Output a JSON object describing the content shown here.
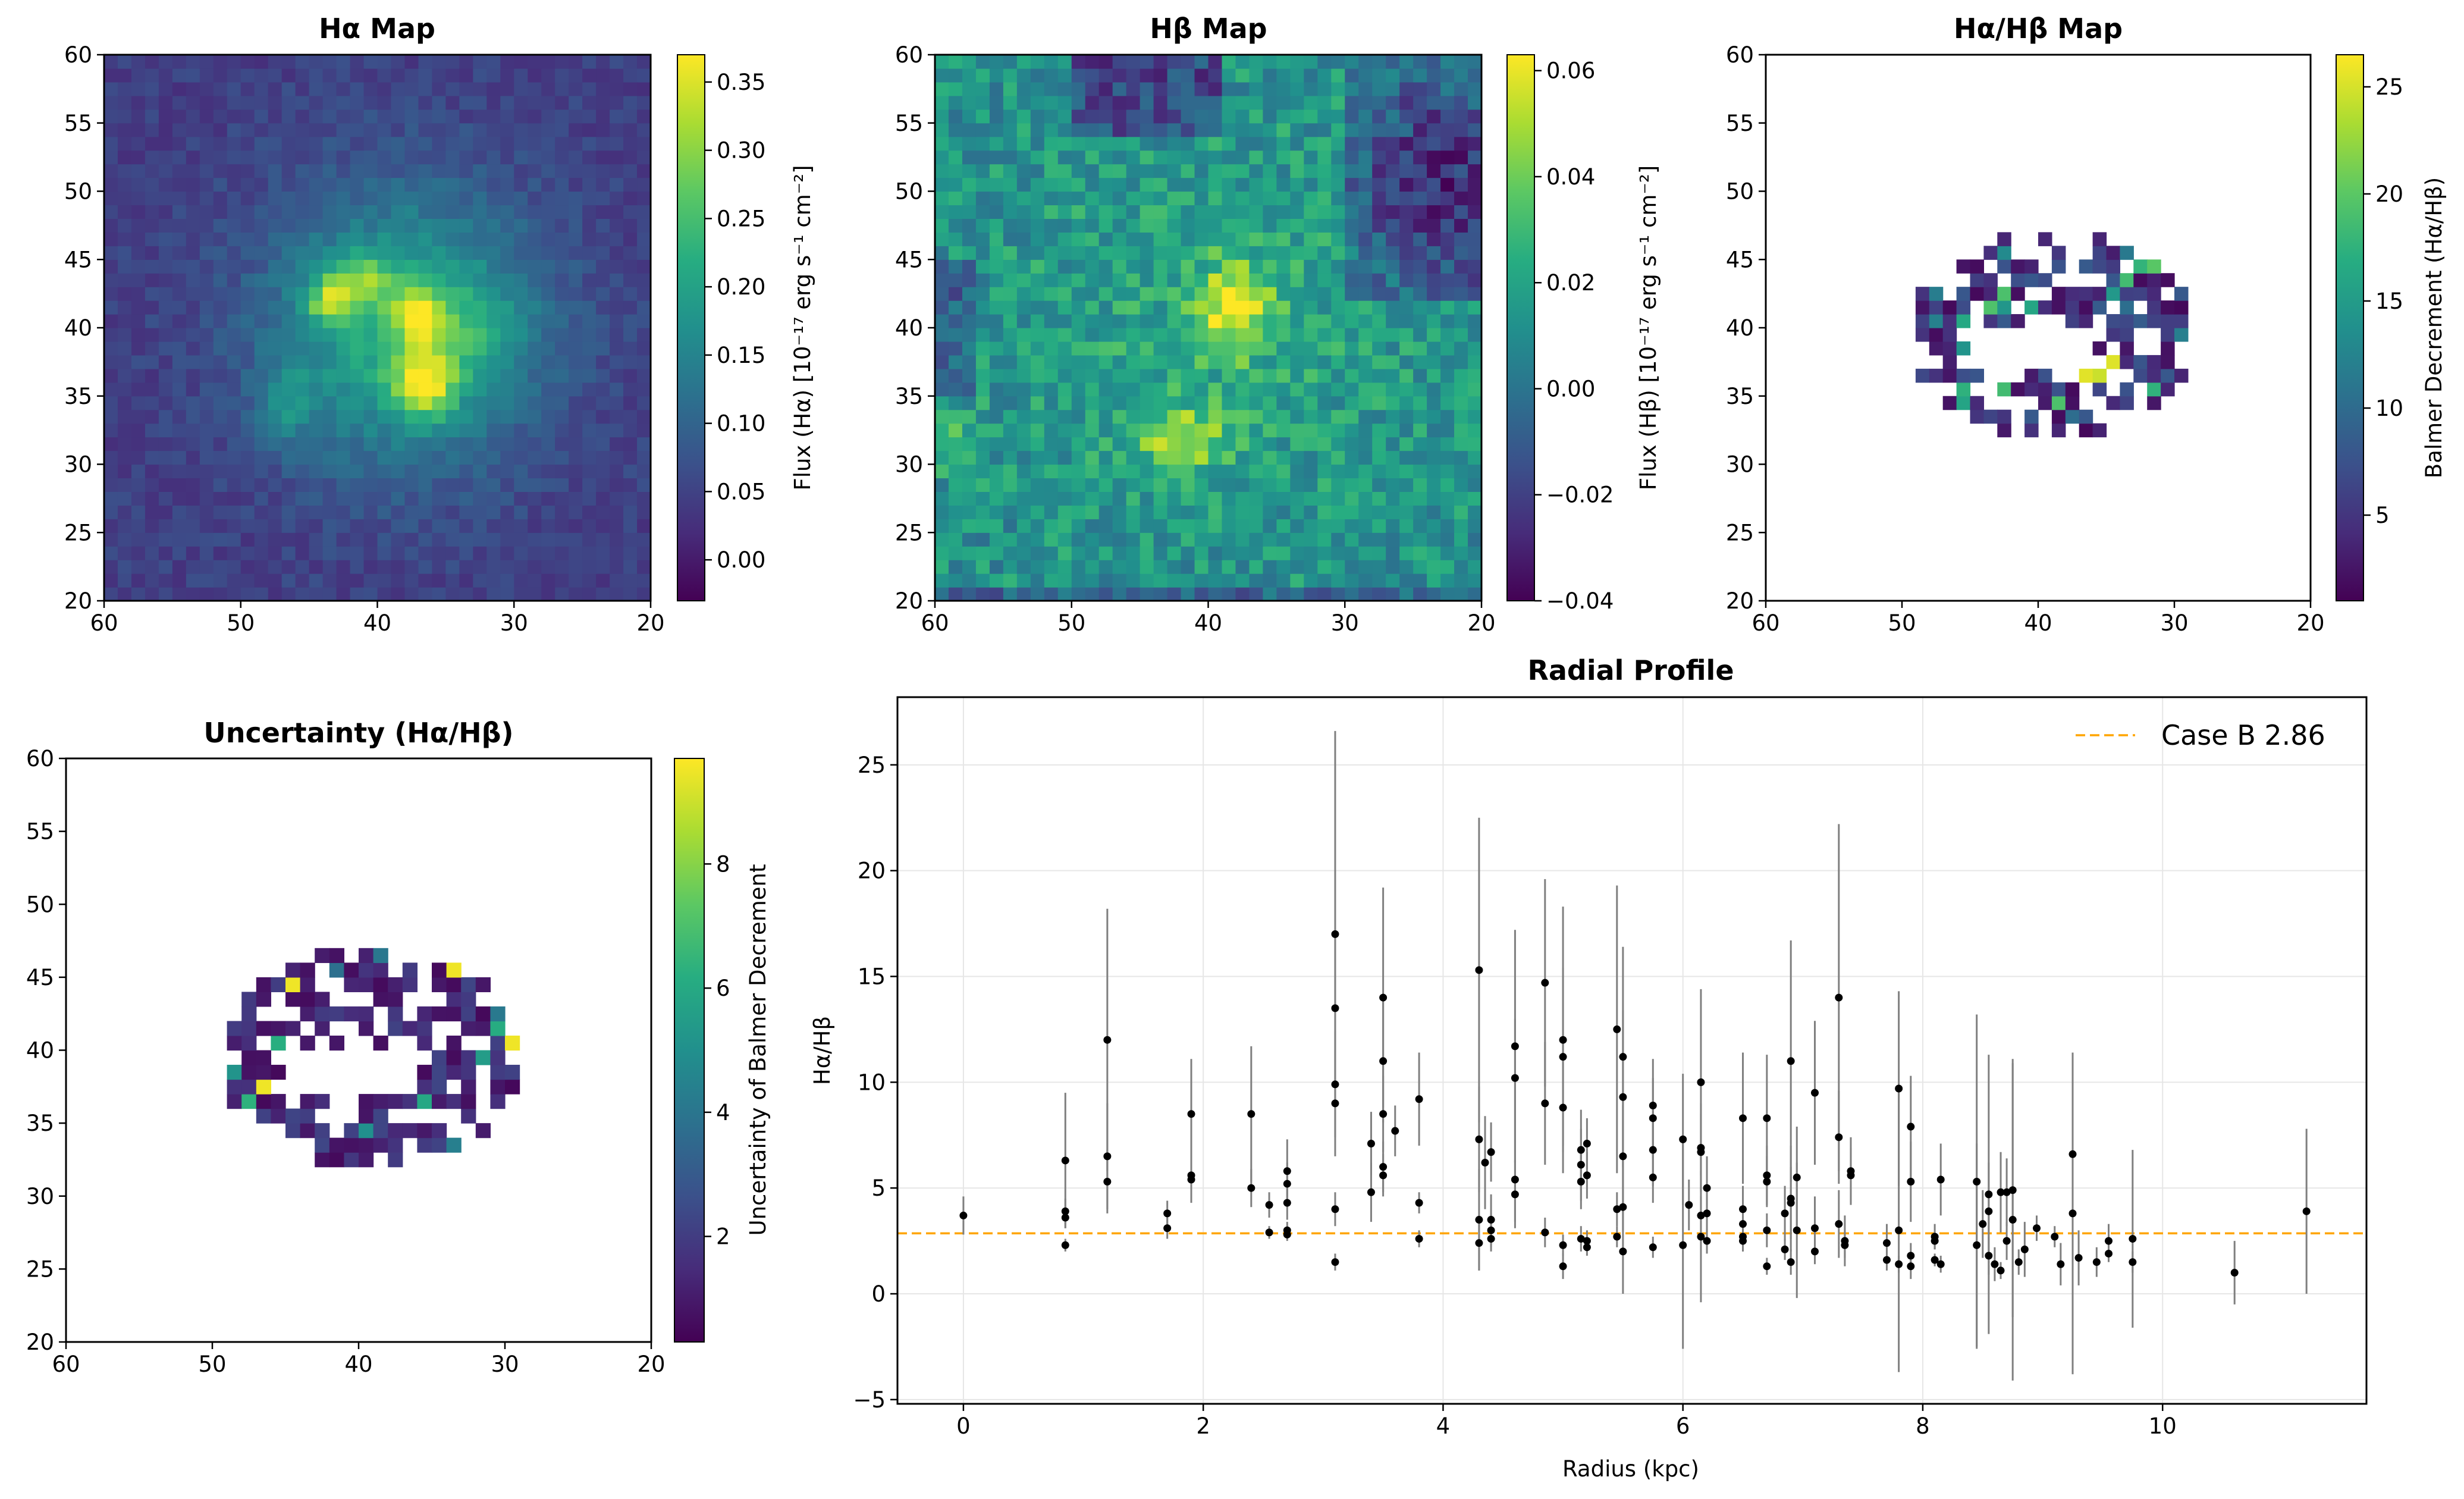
{
  "figure": {
    "panels": [
      {
        "id": "ha",
        "title": "Hα Map",
        "colorbar_label": "Flux (Hα) [10⁻¹⁷ erg s⁻¹ cm⁻²]"
      },
      {
        "id": "hb",
        "title": "Hβ Map",
        "colorbar_label": "Flux (Hβ) [10⁻¹⁷ erg s⁻¹ cm⁻²]"
      },
      {
        "id": "ratio",
        "title": "Hα/Hβ Map",
        "colorbar_label": "Balmer Decrement (Hα/Hβ)"
      },
      {
        "id": "unc",
        "title": "Uncertainty (Hα/Hβ)",
        "colorbar_label": "Uncertainty of Balmer Decrement"
      },
      {
        "id": "radial",
        "title": "Radial Profile",
        "xlabel": "Radius (kpc)",
        "ylabel": "Hα/Hβ",
        "legend": "Case B 2.86"
      }
    ]
  },
  "chart_data": [
    {
      "type": "heatmap",
      "title": "Hα Map",
      "x_range": [
        60,
        20
      ],
      "y_range": [
        20,
        60
      ],
      "x_ticks": [
        "60",
        "50",
        "40",
        "30",
        "20"
      ],
      "y_ticks": [
        "20",
        "25",
        "30",
        "35",
        "40",
        "45",
        "50",
        "55",
        "60"
      ],
      "colorbar": {
        "label": "Flux (Hα) [10⁻¹⁷ erg s⁻¹ cm⁻²]",
        "range": [
          -0.03,
          0.37
        ],
        "ticks": [
          "0.00",
          "0.05",
          "0.10",
          "0.15",
          "0.20",
          "0.25",
          "0.30",
          "0.35"
        ],
        "colormap": "viridis"
      }
    },
    {
      "type": "heatmap",
      "title": "Hβ Map",
      "x_range": [
        60,
        20
      ],
      "y_range": [
        20,
        60
      ],
      "x_ticks": [
        "60",
        "50",
        "40",
        "30",
        "20"
      ],
      "y_ticks": [
        "20",
        "25",
        "30",
        "35",
        "40",
        "45",
        "50",
        "55",
        "60"
      ],
      "colorbar": {
        "label": "Flux (Hβ) [10⁻¹⁷ erg s⁻¹ cm⁻²]",
        "range": [
          -0.04,
          0.063
        ],
        "ticks": [
          "−0.04",
          "−0.02",
          "0.00",
          "0.02",
          "0.04",
          "0.06"
        ],
        "colormap": "viridis"
      }
    },
    {
      "type": "heatmap",
      "title": "Hα/Hβ Map",
      "x_range": [
        60,
        20
      ],
      "y_range": [
        20,
        60
      ],
      "x_ticks": [
        "60",
        "50",
        "40",
        "30",
        "20"
      ],
      "y_ticks": [
        "20",
        "25",
        "30",
        "35",
        "40",
        "45",
        "50",
        "55",
        "60"
      ],
      "colorbar": {
        "label": "Balmer Decrement (Hα/Hβ)",
        "range": [
          1,
          26.5
        ],
        "ticks": [
          "5",
          "10",
          "15",
          "20",
          "25"
        ],
        "colormap": "viridis"
      }
    },
    {
      "type": "heatmap",
      "title": "Uncertainty (Hα/Hβ)",
      "x_range": [
        60,
        20
      ],
      "y_range": [
        20,
        60
      ],
      "x_ticks": [
        "60",
        "50",
        "40",
        "30",
        "20"
      ],
      "y_ticks": [
        "20",
        "25",
        "30",
        "35",
        "40",
        "45",
        "50",
        "55",
        "60"
      ],
      "colorbar": {
        "label": "Uncertainty of Balmer Decrement",
        "range": [
          0.3,
          9.7
        ],
        "ticks": [
          "2",
          "4",
          "6",
          "8"
        ],
        "colormap": "viridis"
      }
    },
    {
      "type": "scatter",
      "title": "Radial Profile",
      "xlabel": "Radius (kpc)",
      "ylabel": "Hα/Hβ",
      "xlim": [
        -0.55,
        11.7
      ],
      "ylim": [
        -5.2,
        28.2
      ],
      "x_ticks": [
        "0",
        "2",
        "4",
        "6",
        "8",
        "10"
      ],
      "y_ticks": [
        "−5",
        "0",
        "5",
        "10",
        "15",
        "20",
        "25"
      ],
      "grid": true,
      "legend_position": "top-right",
      "reference_line": {
        "label": "Case B 2.86",
        "y": 2.86,
        "color": "#ffa500",
        "style": "dashed"
      },
      "points": [
        [
          0.0,
          3.7,
          0.9
        ],
        [
          0.85,
          6.3,
          3.2
        ],
        [
          0.85,
          3.9,
          0.6
        ],
        [
          0.85,
          3.6,
          0.5
        ],
        [
          0.85,
          2.3,
          0.3
        ],
        [
          1.2,
          12.0,
          6.2
        ],
        [
          1.2,
          6.5,
          2.5
        ],
        [
          1.2,
          5.3,
          1.5
        ],
        [
          1.7,
          3.8,
          0.6
        ],
        [
          1.7,
          3.1,
          0.5
        ],
        [
          1.9,
          8.5,
          2.6
        ],
        [
          1.9,
          5.6,
          1.3
        ],
        [
          1.9,
          5.4,
          1.0
        ],
        [
          2.4,
          8.5,
          3.2
        ],
        [
          2.4,
          5.0,
          0.9
        ],
        [
          2.55,
          4.2,
          0.6
        ],
        [
          2.55,
          2.9,
          0.3
        ],
        [
          2.7,
          5.8,
          1.5
        ],
        [
          2.7,
          5.2,
          1.0
        ],
        [
          2.7,
          4.3,
          0.8
        ],
        [
          2.7,
          3.0,
          0.4
        ],
        [
          2.7,
          2.8,
          0.3
        ],
        [
          3.1,
          17.0,
          9.6
        ],
        [
          3.1,
          13.5,
          3.7
        ],
        [
          3.1,
          9.9,
          2.5
        ],
        [
          3.1,
          9.0,
          2.5
        ],
        [
          3.1,
          4.0,
          0.8
        ],
        [
          3.1,
          1.5,
          0.4
        ],
        [
          3.4,
          7.1,
          1.5
        ],
        [
          3.4,
          4.8,
          1.4
        ],
        [
          3.5,
          14.0,
          5.2
        ],
        [
          3.5,
          11.0,
          2.9
        ],
        [
          3.5,
          8.5,
          1.8
        ],
        [
          3.5,
          6.0,
          1.2
        ],
        [
          3.5,
          5.6,
          1.0
        ],
        [
          3.6,
          7.7,
          1.2
        ],
        [
          3.8,
          9.2,
          2.2
        ],
        [
          3.8,
          4.3,
          0.5
        ],
        [
          3.8,
          2.6,
          0.4
        ],
        [
          4.3,
          15.3,
          7.2
        ],
        [
          4.3,
          7.3,
          2.5
        ],
        [
          4.3,
          3.5,
          2.4
        ],
        [
          4.3,
          2.4,
          1.3
        ],
        [
          4.35,
          6.2,
          2.2
        ],
        [
          4.4,
          6.7,
          1.4
        ],
        [
          4.4,
          3.5,
          1.2
        ],
        [
          4.4,
          3.0,
          0.8
        ],
        [
          4.4,
          2.6,
          0.6
        ],
        [
          4.6,
          11.7,
          5.5
        ],
        [
          4.6,
          10.2,
          2.8
        ],
        [
          4.6,
          5.4,
          2.0
        ],
        [
          4.6,
          4.7,
          1.6
        ],
        [
          4.85,
          14.7,
          4.9
        ],
        [
          4.85,
          9.0,
          2.9
        ],
        [
          4.85,
          2.9,
          0.7
        ],
        [
          5.0,
          12.0,
          6.3
        ],
        [
          5.0,
          11.2,
          4.2
        ],
        [
          5.0,
          8.8,
          2.1
        ],
        [
          5.0,
          2.3,
          0.5
        ],
        [
          5.0,
          1.3,
          0.6
        ],
        [
          5.15,
          6.8,
          1.9
        ],
        [
          5.15,
          6.1,
          1.7
        ],
        [
          5.15,
          5.3,
          1.3
        ],
        [
          5.15,
          2.6,
          0.6
        ],
        [
          5.2,
          7.1,
          1.2
        ],
        [
          5.2,
          5.6,
          1.1
        ],
        [
          5.2,
          2.5,
          0.5
        ],
        [
          5.2,
          2.2,
          0.4
        ],
        [
          5.45,
          12.5,
          6.8
        ],
        [
          5.45,
          4.0,
          0.8
        ],
        [
          5.45,
          2.7,
          0.5
        ],
        [
          5.5,
          11.2,
          5.2
        ],
        [
          5.5,
          9.3,
          4.1
        ],
        [
          5.5,
          6.5,
          2.4
        ],
        [
          5.5,
          4.1,
          1.1
        ],
        [
          5.5,
          2.0,
          2.0
        ],
        [
          5.75,
          8.9,
          2.2
        ],
        [
          5.75,
          8.3,
          1.9
        ],
        [
          5.75,
          6.8,
          1.7
        ],
        [
          5.75,
          5.5,
          1.2
        ],
        [
          5.75,
          2.2,
          0.5
        ],
        [
          6.0,
          7.3,
          3.1
        ],
        [
          6.0,
          2.3,
          4.9
        ],
        [
          6.05,
          4.2,
          1.2
        ],
        [
          6.15,
          10.0,
          4.4
        ],
        [
          6.15,
          6.9,
          2.1
        ],
        [
          6.15,
          6.7,
          1.8
        ],
        [
          6.15,
          3.7,
          0.9
        ],
        [
          6.15,
          2.7,
          3.1
        ],
        [
          6.2,
          5.0,
          1.5
        ],
        [
          6.2,
          3.8,
          0.9
        ],
        [
          6.2,
          2.5,
          0.6
        ],
        [
          6.5,
          8.3,
          3.1
        ],
        [
          6.5,
          4.0,
          1.1
        ],
        [
          6.5,
          3.3,
          0.9
        ],
        [
          6.5,
          2.7,
          0.7
        ],
        [
          6.5,
          2.5,
          0.5
        ],
        [
          6.7,
          8.3,
          3.0
        ],
        [
          6.7,
          5.6,
          1.4
        ],
        [
          6.7,
          5.3,
          1.2
        ],
        [
          6.7,
          3.0,
          0.8
        ],
        [
          6.7,
          1.3,
          0.4
        ],
        [
          6.85,
          3.8,
          1.3
        ],
        [
          6.85,
          2.1,
          0.5
        ],
        [
          6.9,
          11.0,
          5.7
        ],
        [
          6.9,
          4.5,
          2.5
        ],
        [
          6.9,
          4.3,
          1.7
        ],
        [
          6.9,
          1.5,
          0.6
        ],
        [
          6.95,
          5.5,
          2.4
        ],
        [
          6.95,
          3.0,
          3.2
        ],
        [
          7.1,
          9.5,
          3.4
        ],
        [
          7.1,
          3.1,
          1.5
        ],
        [
          7.1,
          2.0,
          0.6
        ],
        [
          7.3,
          14.0,
          8.2
        ],
        [
          7.3,
          7.4,
          2.2
        ],
        [
          7.3,
          3.3,
          1.6
        ],
        [
          7.35,
          2.5,
          1.2
        ],
        [
          7.35,
          2.3,
          0.6
        ],
        [
          7.4,
          5.8,
          1.6
        ],
        [
          7.4,
          5.6,
          1.3
        ],
        [
          7.7,
          2.4,
          0.9
        ],
        [
          7.7,
          1.6,
          0.5
        ],
        [
          7.8,
          9.7,
          4.6
        ],
        [
          7.8,
          3.0,
          6.7
        ],
        [
          7.8,
          1.4,
          0.4
        ],
        [
          7.9,
          7.9,
          2.4
        ],
        [
          7.9,
          5.3,
          1.9
        ],
        [
          7.9,
          1.8,
          0.6
        ],
        [
          7.9,
          1.3,
          0.6
        ],
        [
          8.1,
          2.7,
          0.6
        ],
        [
          8.1,
          2.5,
          0.4
        ],
        [
          8.1,
          1.6,
          0.3
        ],
        [
          8.15,
          5.4,
          1.7
        ],
        [
          8.15,
          1.4,
          0.4
        ],
        [
          8.45,
          5.3,
          7.9
        ],
        [
          8.45,
          2.3,
          4.8
        ],
        [
          8.5,
          3.3,
          1.6
        ],
        [
          8.55,
          4.7,
          6.6
        ],
        [
          8.55,
          3.9,
          2.3
        ],
        [
          8.55,
          1.8,
          0.9
        ],
        [
          8.6,
          1.4,
          0.8
        ],
        [
          8.65,
          4.8,
          1.9
        ],
        [
          8.65,
          1.1,
          0.4
        ],
        [
          8.7,
          4.8,
          1.6
        ],
        [
          8.7,
          2.5,
          0.9
        ],
        [
          8.75,
          4.9,
          6.0
        ],
        [
          8.75,
          3.5,
          7.6
        ],
        [
          8.8,
          1.5,
          0.6
        ],
        [
          8.85,
          2.1,
          1.3
        ],
        [
          8.95,
          3.1,
          0.6
        ],
        [
          9.1,
          2.7,
          0.5
        ],
        [
          9.15,
          1.4,
          1.0
        ],
        [
          9.25,
          6.6,
          3.1
        ],
        [
          9.25,
          3.8,
          7.6
        ],
        [
          9.3,
          1.7,
          1.3
        ],
        [
          9.45,
          1.5,
          0.7
        ],
        [
          9.55,
          2.5,
          0.8
        ],
        [
          9.55,
          1.9,
          0.4
        ],
        [
          9.75,
          2.6,
          4.2
        ],
        [
          9.75,
          1.5,
          0.5
        ],
        [
          10.6,
          1.0,
          1.5
        ],
        [
          11.2,
          3.9,
          3.9
        ]
      ]
    }
  ]
}
